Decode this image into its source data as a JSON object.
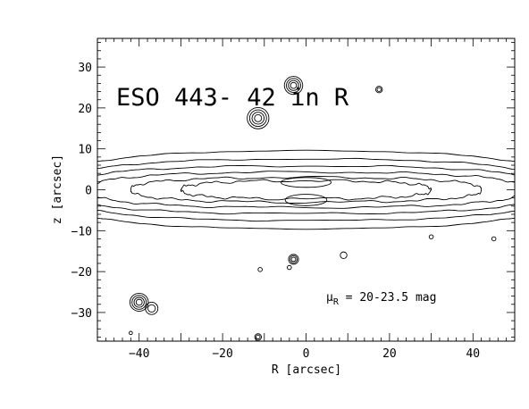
{
  "chart_data": {
    "type": "contour",
    "title": "ESO 443- 42 in R",
    "annotation": "μ_R = 20-23.5 mag",
    "annotation_parts": {
      "mu": "μ",
      "sub": "R",
      "rest": " = 20-23.5 mag"
    },
    "xlabel": "R [arcsec]",
    "ylabel": "z [arcsec]",
    "xlim": [
      -50,
      50
    ],
    "ylim": [
      -37,
      37
    ],
    "xticks": [
      -40,
      -20,
      0,
      20,
      40
    ],
    "yticks": [
      -30,
      -20,
      -10,
      0,
      10,
      20,
      30
    ],
    "grid": false,
    "levels_mag": [
      20,
      20.5,
      21,
      21.5,
      22,
      22.5,
      23,
      23.5
    ],
    "disk_contours": [
      {
        "a": 62,
        "b": 9.5
      },
      {
        "a": 60,
        "b": 7.5
      },
      {
        "a": 58,
        "b": 5.8
      },
      {
        "a": 52,
        "b": 4.3
      },
      {
        "a": 42,
        "b": 3.0
      },
      {
        "a": 30,
        "b": 2.2
      }
    ],
    "bulge_contours": [
      {
        "x": 0,
        "y": 1.8,
        "a": 6,
        "b": 1.2
      },
      {
        "x": 0,
        "y": -2.5,
        "a": 5,
        "b": 1.4
      }
    ],
    "stars": [
      {
        "x": -3,
        "y": 25.5,
        "r": 2.2,
        "rings": 4
      },
      {
        "x": -11.5,
        "y": 17.5,
        "r": 2.6,
        "rings": 4
      },
      {
        "x": 17.5,
        "y": 24.5,
        "r": 0.8,
        "rings": 2
      },
      {
        "x": -3,
        "y": -17,
        "r": 1.2,
        "rings": 3
      },
      {
        "x": 9,
        "y": -16,
        "r": 0.8,
        "rings": 1
      },
      {
        "x": -40,
        "y": -27.5,
        "r": 2.2,
        "rings": 4
      },
      {
        "x": -37,
        "y": -29,
        "r": 1.5,
        "rings": 2
      },
      {
        "x": -11.5,
        "y": -36,
        "r": 0.8,
        "rings": 2
      },
      {
        "x": -42,
        "y": -35,
        "r": 0.4,
        "rings": 1
      },
      {
        "x": -11,
        "y": -19.5,
        "r": 0.5,
        "rings": 1
      },
      {
        "x": 30,
        "y": -11.5,
        "r": 0.5,
        "rings": 1
      },
      {
        "x": 45,
        "y": -12,
        "r": 0.5,
        "rings": 1
      },
      {
        "x": -4,
        "y": -19,
        "r": 0.5,
        "rings": 1
      }
    ]
  }
}
